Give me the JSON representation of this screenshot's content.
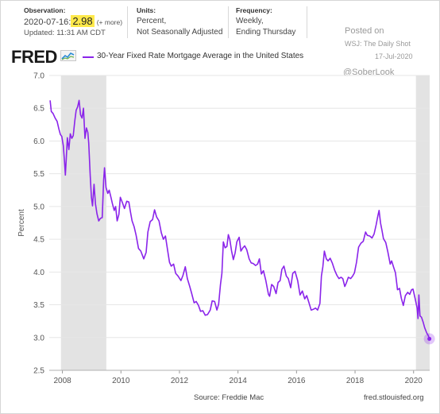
{
  "header": {
    "observation": {
      "label": "Observation:",
      "date": "2020-07-16:",
      "value": "2.98",
      "more": "(+ more)",
      "updated": "Updated: 11:31 AM CDT"
    },
    "units": {
      "label": "Units:",
      "line1": "Percent,",
      "line2": "Not Seasonally Adjusted"
    },
    "frequency": {
      "label": "Frequency:",
      "line1": "Weekly,",
      "line2": "Ending Thursday"
    }
  },
  "watermark": {
    "posted": "Posted on",
    "source": "WSJ: The Daily Shot",
    "date": "17-Jul-2020",
    "handle": "@SoberLook"
  },
  "logo": {
    "text": "FRED",
    "icon": "line-graph-icon"
  },
  "footer": {
    "source": "Source: Freddie Mac",
    "site": "fred.stlouisfed.org"
  },
  "colors": {
    "series": "#8a24ea",
    "recession": "#e3e3e3",
    "grid": "#e6e6e6",
    "highlight": "#ffe94a"
  },
  "chart_data": {
    "type": "line",
    "title": "",
    "xlabel": "",
    "ylabel": "Percent",
    "ylim": [
      2.5,
      7.0
    ],
    "yticks": [
      "2.5",
      "3.0",
      "3.5",
      "4.0",
      "4.5",
      "5.0",
      "5.5",
      "6.0",
      "6.5",
      "7.0"
    ],
    "xlim": [
      2007.55,
      2020.55
    ],
    "xticks": [
      "2008",
      "2010",
      "2012",
      "2014",
      "2016",
      "2018",
      "2020"
    ],
    "grid": true,
    "recessions": [
      [
        2007.95,
        2009.5
      ],
      [
        2020.08,
        2020.55
      ]
    ],
    "series": [
      {
        "name": "30-Year Fixed Rate Mortgage Average in the United States",
        "last_point": {
          "x": 2020.54,
          "y": 2.98
        },
        "points": [
          [
            2007.58,
            6.62
          ],
          [
            2007.62,
            6.45
          ],
          [
            2007.68,
            6.42
          ],
          [
            2007.75,
            6.35
          ],
          [
            2007.82,
            6.3
          ],
          [
            2007.88,
            6.18
          ],
          [
            2007.93,
            6.1
          ],
          [
            2007.98,
            6.07
          ],
          [
            2008.03,
            5.93
          ],
          [
            2008.07,
            5.69
          ],
          [
            2008.1,
            5.48
          ],
          [
            2008.13,
            5.72
          ],
          [
            2008.17,
            6.05
          ],
          [
            2008.22,
            5.87
          ],
          [
            2008.27,
            6.11
          ],
          [
            2008.32,
            6.04
          ],
          [
            2008.37,
            6.08
          ],
          [
            2008.42,
            6.3
          ],
          [
            2008.47,
            6.47
          ],
          [
            2008.52,
            6.52
          ],
          [
            2008.57,
            6.62
          ],
          [
            2008.62,
            6.4
          ],
          [
            2008.67,
            6.35
          ],
          [
            2008.72,
            6.5
          ],
          [
            2008.77,
            6.04
          ],
          [
            2008.82,
            6.2
          ],
          [
            2008.87,
            6.13
          ],
          [
            2008.9,
            5.97
          ],
          [
            2008.95,
            5.47
          ],
          [
            2008.99,
            5.14
          ],
          [
            2009.03,
            5.01
          ],
          [
            2009.08,
            5.34
          ],
          [
            2009.13,
            5.04
          ],
          [
            2009.18,
            4.89
          ],
          [
            2009.24,
            4.78
          ],
          [
            2009.3,
            4.82
          ],
          [
            2009.36,
            4.83
          ],
          [
            2009.41,
            5.4
          ],
          [
            2009.44,
            5.59
          ],
          [
            2009.49,
            5.29
          ],
          [
            2009.55,
            5.2
          ],
          [
            2009.6,
            5.25
          ],
          [
            2009.66,
            5.14
          ],
          [
            2009.71,
            5.04
          ],
          [
            2009.77,
            4.94
          ],
          [
            2009.82,
            5.0
          ],
          [
            2009.87,
            4.78
          ],
          [
            2009.93,
            4.88
          ],
          [
            2009.98,
            5.14
          ],
          [
            2010.05,
            5.06
          ],
          [
            2010.12,
            4.97
          ],
          [
            2010.2,
            5.08
          ],
          [
            2010.27,
            5.07
          ],
          [
            2010.32,
            4.93
          ],
          [
            2010.38,
            4.78
          ],
          [
            2010.45,
            4.69
          ],
          [
            2010.52,
            4.56
          ],
          [
            2010.6,
            4.36
          ],
          [
            2010.68,
            4.32
          ],
          [
            2010.78,
            4.2
          ],
          [
            2010.86,
            4.3
          ],
          [
            2010.92,
            4.61
          ],
          [
            2011.0,
            4.77
          ],
          [
            2011.08,
            4.8
          ],
          [
            2011.15,
            4.95
          ],
          [
            2011.22,
            4.84
          ],
          [
            2011.3,
            4.78
          ],
          [
            2011.38,
            4.6
          ],
          [
            2011.45,
            4.5
          ],
          [
            2011.52,
            4.55
          ],
          [
            2011.6,
            4.32
          ],
          [
            2011.66,
            4.15
          ],
          [
            2011.72,
            4.09
          ],
          [
            2011.8,
            4.12
          ],
          [
            2011.87,
            3.98
          ],
          [
            2011.95,
            3.94
          ],
          [
            2012.05,
            3.87
          ],
          [
            2012.12,
            3.95
          ],
          [
            2012.2,
            4.08
          ],
          [
            2012.27,
            3.9
          ],
          [
            2012.35,
            3.78
          ],
          [
            2012.42,
            3.67
          ],
          [
            2012.5,
            3.53
          ],
          [
            2012.57,
            3.55
          ],
          [
            2012.65,
            3.49
          ],
          [
            2012.72,
            3.4
          ],
          [
            2012.8,
            3.41
          ],
          [
            2012.88,
            3.34
          ],
          [
            2012.96,
            3.35
          ],
          [
            2013.05,
            3.42
          ],
          [
            2013.12,
            3.56
          ],
          [
            2013.2,
            3.55
          ],
          [
            2013.28,
            3.42
          ],
          [
            2013.34,
            3.51
          ],
          [
            2013.4,
            3.81
          ],
          [
            2013.45,
            3.98
          ],
          [
            2013.5,
            4.46
          ],
          [
            2013.56,
            4.37
          ],
          [
            2013.62,
            4.39
          ],
          [
            2013.67,
            4.57
          ],
          [
            2013.72,
            4.5
          ],
          [
            2013.78,
            4.32
          ],
          [
            2013.84,
            4.19
          ],
          [
            2013.9,
            4.29
          ],
          [
            2013.96,
            4.46
          ],
          [
            2014.04,
            4.53
          ],
          [
            2014.1,
            4.32
          ],
          [
            2014.17,
            4.37
          ],
          [
            2014.23,
            4.4
          ],
          [
            2014.3,
            4.34
          ],
          [
            2014.38,
            4.2
          ],
          [
            2014.45,
            4.14
          ],
          [
            2014.52,
            4.13
          ],
          [
            2014.6,
            4.1
          ],
          [
            2014.67,
            4.12
          ],
          [
            2014.73,
            4.2
          ],
          [
            2014.8,
            3.97
          ],
          [
            2014.87,
            4.02
          ],
          [
            2014.95,
            3.87
          ],
          [
            2015.04,
            3.66
          ],
          [
            2015.08,
            3.63
          ],
          [
            2015.15,
            3.81
          ],
          [
            2015.22,
            3.78
          ],
          [
            2015.3,
            3.67
          ],
          [
            2015.37,
            3.84
          ],
          [
            2015.44,
            3.87
          ],
          [
            2015.5,
            4.04
          ],
          [
            2015.57,
            4.09
          ],
          [
            2015.65,
            3.94
          ],
          [
            2015.72,
            3.9
          ],
          [
            2015.8,
            3.76
          ],
          [
            2015.87,
            3.98
          ],
          [
            2015.95,
            4.01
          ],
          [
            2016.04,
            3.87
          ],
          [
            2016.12,
            3.65
          ],
          [
            2016.2,
            3.71
          ],
          [
            2016.28,
            3.59
          ],
          [
            2016.35,
            3.64
          ],
          [
            2016.42,
            3.54
          ],
          [
            2016.5,
            3.42
          ],
          [
            2016.57,
            3.43
          ],
          [
            2016.65,
            3.45
          ],
          [
            2016.72,
            3.42
          ],
          [
            2016.8,
            3.52
          ],
          [
            2016.85,
            3.94
          ],
          [
            2016.9,
            4.08
          ],
          [
            2016.95,
            4.32
          ],
          [
            2017.02,
            4.2
          ],
          [
            2017.08,
            4.17
          ],
          [
            2017.15,
            4.21
          ],
          [
            2017.22,
            4.14
          ],
          [
            2017.3,
            4.03
          ],
          [
            2017.38,
            3.95
          ],
          [
            2017.45,
            3.9
          ],
          [
            2017.52,
            3.92
          ],
          [
            2017.58,
            3.9
          ],
          [
            2017.65,
            3.78
          ],
          [
            2017.7,
            3.83
          ],
          [
            2017.77,
            3.92
          ],
          [
            2017.85,
            3.9
          ],
          [
            2017.92,
            3.94
          ],
          [
            2017.98,
            3.99
          ],
          [
            2018.05,
            4.15
          ],
          [
            2018.12,
            4.38
          ],
          [
            2018.2,
            4.44
          ],
          [
            2018.28,
            4.47
          ],
          [
            2018.36,
            4.61
          ],
          [
            2018.42,
            4.56
          ],
          [
            2018.5,
            4.55
          ],
          [
            2018.58,
            4.52
          ],
          [
            2018.65,
            4.58
          ],
          [
            2018.72,
            4.72
          ],
          [
            2018.78,
            4.86
          ],
          [
            2018.82,
            4.94
          ],
          [
            2018.87,
            4.75
          ],
          [
            2018.92,
            4.64
          ],
          [
            2018.97,
            4.51
          ],
          [
            2019.05,
            4.45
          ],
          [
            2019.12,
            4.31
          ],
          [
            2019.2,
            4.12
          ],
          [
            2019.25,
            4.17
          ],
          [
            2019.32,
            4.07
          ],
          [
            2019.38,
            3.99
          ],
          [
            2019.45,
            3.73
          ],
          [
            2019.52,
            3.75
          ],
          [
            2019.58,
            3.6
          ],
          [
            2019.65,
            3.49
          ],
          [
            2019.72,
            3.64
          ],
          [
            2019.8,
            3.69
          ],
          [
            2019.87,
            3.66
          ],
          [
            2019.93,
            3.73
          ],
          [
            2019.98,
            3.74
          ],
          [
            2020.05,
            3.6
          ],
          [
            2020.12,
            3.45
          ],
          [
            2020.15,
            3.29
          ],
          [
            2020.18,
            3.65
          ],
          [
            2020.22,
            3.33
          ],
          [
            2020.27,
            3.31
          ],
          [
            2020.33,
            3.23
          ],
          [
            2020.38,
            3.15
          ],
          [
            2020.45,
            3.07
          ],
          [
            2020.5,
            3.03
          ],
          [
            2020.54,
            2.98
          ]
        ]
      }
    ]
  }
}
